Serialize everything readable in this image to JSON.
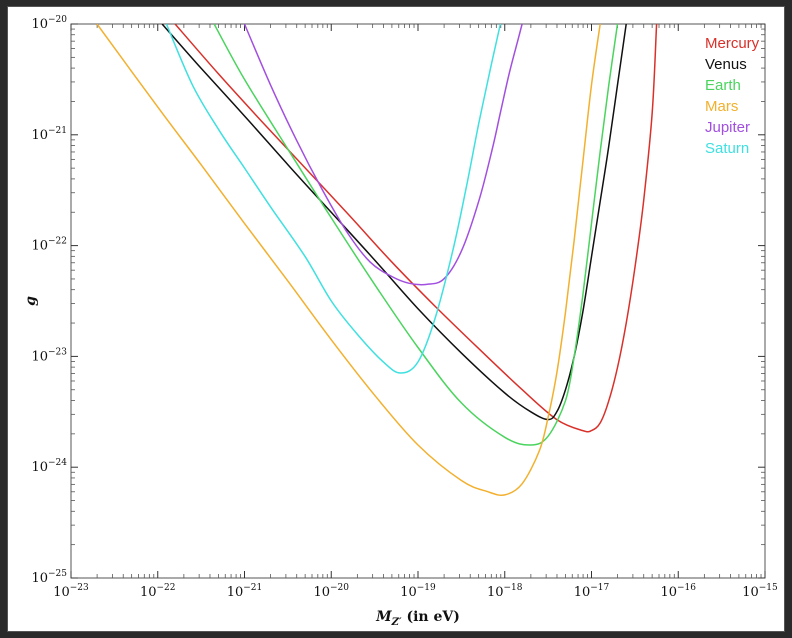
{
  "chart_data": {
    "type": "line",
    "title": "",
    "xlabel": "M",
    "xlabel_subscript": "Z′",
    "xlabel_suffix": " (in eV)",
    "ylabel": "g",
    "xscale": "log",
    "yscale": "log",
    "xlim": [
      1e-23,
      1e-15
    ],
    "ylim": [
      1e-25,
      1e-20
    ],
    "x_ticks": [
      {
        "base": "10",
        "exp": "−23",
        "value": -23
      },
      {
        "base": "10",
        "exp": "−22",
        "value": -22
      },
      {
        "base": "10",
        "exp": "−21",
        "value": -21
      },
      {
        "base": "10",
        "exp": "−20",
        "value": -20
      },
      {
        "base": "10",
        "exp": "−19",
        "value": -19
      },
      {
        "base": "10",
        "exp": "−18",
        "value": -18
      },
      {
        "base": "10",
        "exp": "−17",
        "value": -17
      },
      {
        "base": "10",
        "exp": "−16",
        "value": -16
      },
      {
        "base": "10",
        "exp": "−15",
        "value": -15
      }
    ],
    "y_ticks": [
      {
        "base": "10",
        "exp": "−20",
        "value": -20
      },
      {
        "base": "10",
        "exp": "−21",
        "value": -21
      },
      {
        "base": "10",
        "exp": "−22",
        "value": -22
      },
      {
        "base": "10",
        "exp": "−23",
        "value": -23
      },
      {
        "base": "10",
        "exp": "−24",
        "value": -24
      },
      {
        "base": "10",
        "exp": "−25",
        "value": -25
      }
    ],
    "grid": false,
    "legend_position": "top-right",
    "series": [
      {
        "name": "Mercury",
        "color": "#d9302a",
        "log10_x": [
          -21.8,
          -21.3,
          -20.8,
          -20.3,
          -19.8,
          -19.3,
          -18.8,
          -18.3,
          -17.8,
          -17.4,
          -17.1,
          -17.0,
          -16.9,
          -16.8,
          -16.7,
          -16.6,
          -16.5,
          -16.4,
          -16.3,
          -16.25
        ],
        "log10_y": [
          -20.0,
          -20.45,
          -20.88,
          -21.3,
          -21.72,
          -22.15,
          -22.55,
          -22.93,
          -23.3,
          -23.57,
          -23.67,
          -23.67,
          -23.6,
          -23.4,
          -23.1,
          -22.7,
          -22.2,
          -21.6,
          -20.8,
          -20.0
        ]
      },
      {
        "name": "Venus",
        "color": "#111111",
        "log10_x": [
          -21.95,
          -21.5,
          -21.0,
          -20.5,
          -20.0,
          -19.5,
          -19.0,
          -18.5,
          -18.0,
          -17.7,
          -17.5,
          -17.4,
          -17.3,
          -17.2,
          -17.1,
          -17.0,
          -16.9,
          -16.8,
          -16.7,
          -16.6
        ],
        "log10_y": [
          -20.0,
          -20.4,
          -20.83,
          -21.27,
          -21.7,
          -22.13,
          -22.57,
          -22.97,
          -23.33,
          -23.5,
          -23.57,
          -23.5,
          -23.3,
          -23.0,
          -22.6,
          -22.1,
          -21.6,
          -21.1,
          -20.55,
          -20.0
        ]
      },
      {
        "name": "Earth",
        "color": "#4ad45e",
        "log10_x": [
          -21.35,
          -21.0,
          -20.5,
          -20.0,
          -19.5,
          -19.0,
          -18.5,
          -18.0,
          -17.7,
          -17.5,
          -17.3,
          -17.2,
          -17.1,
          -17.0,
          -16.9,
          -16.8,
          -16.7
        ],
        "log10_y": [
          -20.0,
          -20.5,
          -21.13,
          -21.75,
          -22.35,
          -22.92,
          -23.42,
          -23.73,
          -23.8,
          -23.72,
          -23.4,
          -23.0,
          -22.45,
          -21.8,
          -21.15,
          -20.55,
          -20.0
        ]
      },
      {
        "name": "Mars",
        "color": "#f2b02e",
        "log10_x": [
          -22.7,
          -22.0,
          -21.5,
          -21.0,
          -20.5,
          -20.0,
          -19.5,
          -19.0,
          -18.5,
          -18.2,
          -18.0,
          -17.8,
          -17.6,
          -17.5,
          -17.4,
          -17.3,
          -17.2,
          -17.1,
          -17.0,
          -16.9
        ],
        "log10_y": [
          -20.0,
          -20.75,
          -21.27,
          -21.8,
          -22.32,
          -22.85,
          -23.35,
          -23.8,
          -24.12,
          -24.22,
          -24.25,
          -24.15,
          -23.85,
          -23.55,
          -23.15,
          -22.6,
          -21.95,
          -21.25,
          -20.55,
          -20.0
        ]
      },
      {
        "name": "Jupiter",
        "color": "#a24fe0",
        "log10_x": [
          -21.0,
          -20.7,
          -20.4,
          -20.1,
          -19.8,
          -19.55,
          -19.3,
          -19.1,
          -18.9,
          -18.7,
          -18.5,
          -18.3,
          -18.15,
          -18.05,
          -17.95,
          -17.85,
          -17.8
        ],
        "log10_y": [
          -20.0,
          -20.55,
          -21.05,
          -21.5,
          -21.9,
          -22.15,
          -22.28,
          -22.34,
          -22.35,
          -22.3,
          -22.05,
          -21.6,
          -21.15,
          -20.8,
          -20.45,
          -20.15,
          -20.0
        ]
      },
      {
        "name": "Saturn",
        "color": "#3fe0e0",
        "log10_x": [
          -21.9,
          -21.6,
          -21.3,
          -21.0,
          -20.7,
          -20.3,
          -20.0,
          -19.7,
          -19.4,
          -19.2,
          -19.0,
          -18.8,
          -18.6,
          -18.45,
          -18.3,
          -18.15,
          -18.05
        ],
        "log10_y": [
          -20.0,
          -20.55,
          -20.95,
          -21.3,
          -21.65,
          -22.1,
          -22.5,
          -22.8,
          -23.05,
          -23.15,
          -23.05,
          -22.65,
          -22.05,
          -21.5,
          -20.9,
          -20.35,
          -20.0
        ]
      }
    ]
  }
}
